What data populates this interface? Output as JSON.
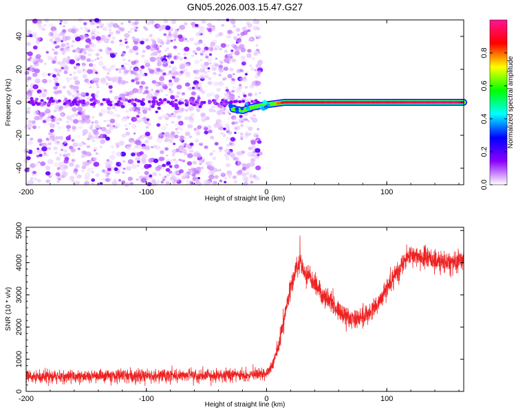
{
  "title": "GN05.2026.003.15.47.G27",
  "chart_data": [
    {
      "type": "heatmap",
      "xlabel": "Height of straight line (km)",
      "ylabel": "Frequency (Hz)",
      "xlim": [
        -200,
        164
      ],
      "ylim": [
        -50,
        50
      ],
      "xticks": [
        "-200",
        "-100",
        "0",
        "100"
      ],
      "yticks": [
        "-40",
        "-20",
        "0",
        "20",
        "40"
      ],
      "colorbar": {
        "label": "Normalized spectral amplitude",
        "range": [
          0,
          1
        ],
        "ticks": [
          "0.0",
          "0.2",
          "0.4",
          "0.6",
          "0.8"
        ],
        "colors": [
          "#ffffff",
          "#8b00ff",
          "#0000ff",
          "#00ffff",
          "#00ff00",
          "#ffff00",
          "#ff0000",
          "#ff1493"
        ]
      },
      "noise_region": {
        "x_from": -200,
        "x_to": -5,
        "freq_range": [
          -50,
          50
        ],
        "amplitude_range": [
          0.0,
          0.2
        ]
      },
      "signal_track": [
        {
          "x": -28,
          "freq": -4,
          "amp": 0.3
        },
        {
          "x": -20,
          "freq": -5,
          "amp": 0.35
        },
        {
          "x": -12,
          "freq": -3,
          "amp": 0.45
        },
        {
          "x": -5,
          "freq": -2,
          "amp": 0.6
        },
        {
          "x": 5,
          "freq": -1,
          "amp": 0.7
        },
        {
          "x": 15,
          "freq": 0,
          "amp": 0.9
        },
        {
          "x": 164,
          "freq": 0,
          "amp": 0.95
        }
      ]
    },
    {
      "type": "line",
      "xlabel": "Height of straight line (km)",
      "ylabel": "SNR (10 * v/v)",
      "xlim": [
        -200,
        164
      ],
      "ylim": [
        0,
        5100
      ],
      "xticks": [
        "-200",
        "-100",
        "0",
        "100"
      ],
      "yticks": [
        "0",
        "1000",
        "2000",
        "3000",
        "4000",
        "5000"
      ],
      "series_color": "#ee2222",
      "x": [
        -200,
        -150,
        -100,
        -50,
        0,
        5,
        10,
        15,
        20,
        25,
        28,
        32,
        40,
        50,
        60,
        70,
        80,
        90,
        100,
        110,
        120,
        130,
        140,
        150,
        164
      ],
      "y": [
        450,
        470,
        490,
        500,
        520,
        800,
        1400,
        2300,
        3200,
        3900,
        4000,
        3700,
        3300,
        2900,
        2500,
        2250,
        2300,
        2600,
        3200,
        3800,
        4300,
        4150,
        4050,
        4000,
        4100
      ],
      "spread": 220
    }
  ]
}
